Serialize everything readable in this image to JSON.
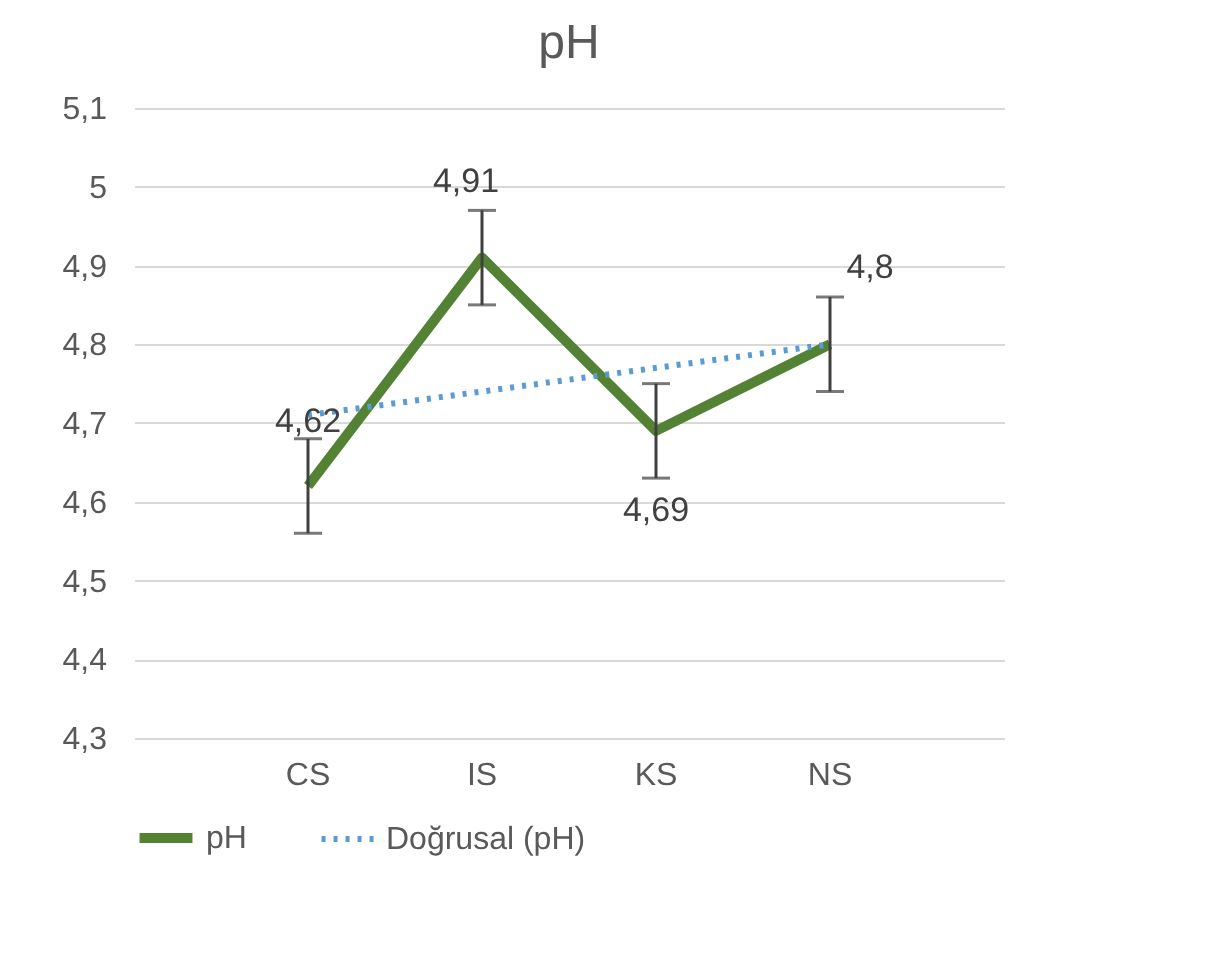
{
  "chart_data": {
    "type": "line",
    "title": "pH",
    "categories": [
      "CS",
      "IS",
      "KS",
      "NS"
    ],
    "series": [
      {
        "name": "pH",
        "color": "#548235",
        "values": [
          4.62,
          4.91,
          4.69,
          4.8
        ],
        "errors": [
          0.06,
          0.06,
          0.06,
          0.06
        ],
        "value_labels": [
          "4,62",
          "4,91",
          "4,69",
          "4,8"
        ],
        "line_style": "solid"
      },
      {
        "name": "Doğrusal (pH)",
        "color": "#5b9bd5",
        "values": [
          4.71,
          4.74,
          4.77,
          4.8
        ],
        "line_style": "dotted"
      }
    ],
    "ylim": [
      4.3,
      5.1
    ],
    "yticks": [
      {
        "value": 4.3,
        "label": "4,3"
      },
      {
        "value": 4.4,
        "label": "4,4"
      },
      {
        "value": 4.5,
        "label": "4,5"
      },
      {
        "value": 4.6,
        "label": "4,6"
      },
      {
        "value": 4.7,
        "label": "4,7"
      },
      {
        "value": 4.8,
        "label": "4,8"
      },
      {
        "value": 4.9,
        "label": "4,9"
      },
      {
        "value": 5.0,
        "label": "5"
      },
      {
        "value": 5.1,
        "label": "5,1"
      }
    ],
    "grid": "y",
    "legend": "bottom",
    "marker": "none"
  }
}
